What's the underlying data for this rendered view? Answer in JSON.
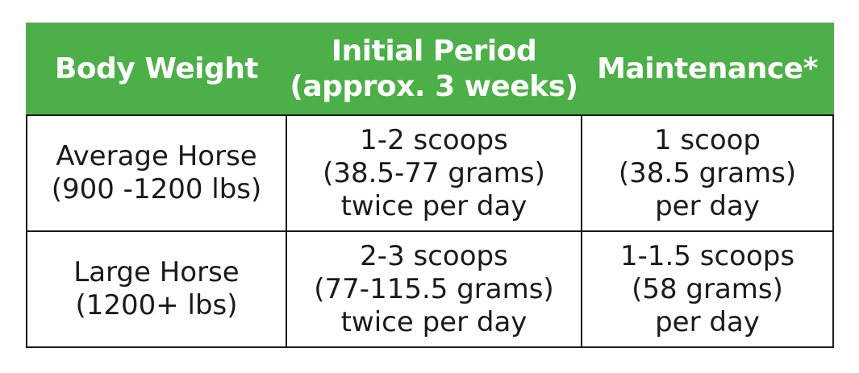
{
  "header": {
    "body_weight": "Body Weight",
    "initial_period_line1": "Initial Period",
    "initial_period_line2": "(approx. 3 weeks)",
    "maintenance": "Maintenance*"
  },
  "rows": [
    {
      "weight_line1": "Average Horse",
      "weight_line2": "(900 -1200 lbs)",
      "initial_line1": "1-2 scoops",
      "initial_line2": "(38.5-77 grams)",
      "initial_line3": "twice per day",
      "maint_line1": "1 scoop",
      "maint_line2": "(38.5 grams)",
      "maint_line3": "per day"
    },
    {
      "weight_line1": "Large Horse",
      "weight_line2": "(1200+ lbs)",
      "initial_line1": "2-3 scoops",
      "initial_line2": "(77-115.5 grams)",
      "initial_line3": "twice per day",
      "maint_line1": "1-1.5 scoops",
      "maint_line2": "(58 grams)",
      "maint_line3": "per day"
    }
  ],
  "colors": {
    "header_bg": "#4caf48",
    "header_text": "#ffffff",
    "border": "#1a1a1a"
  }
}
